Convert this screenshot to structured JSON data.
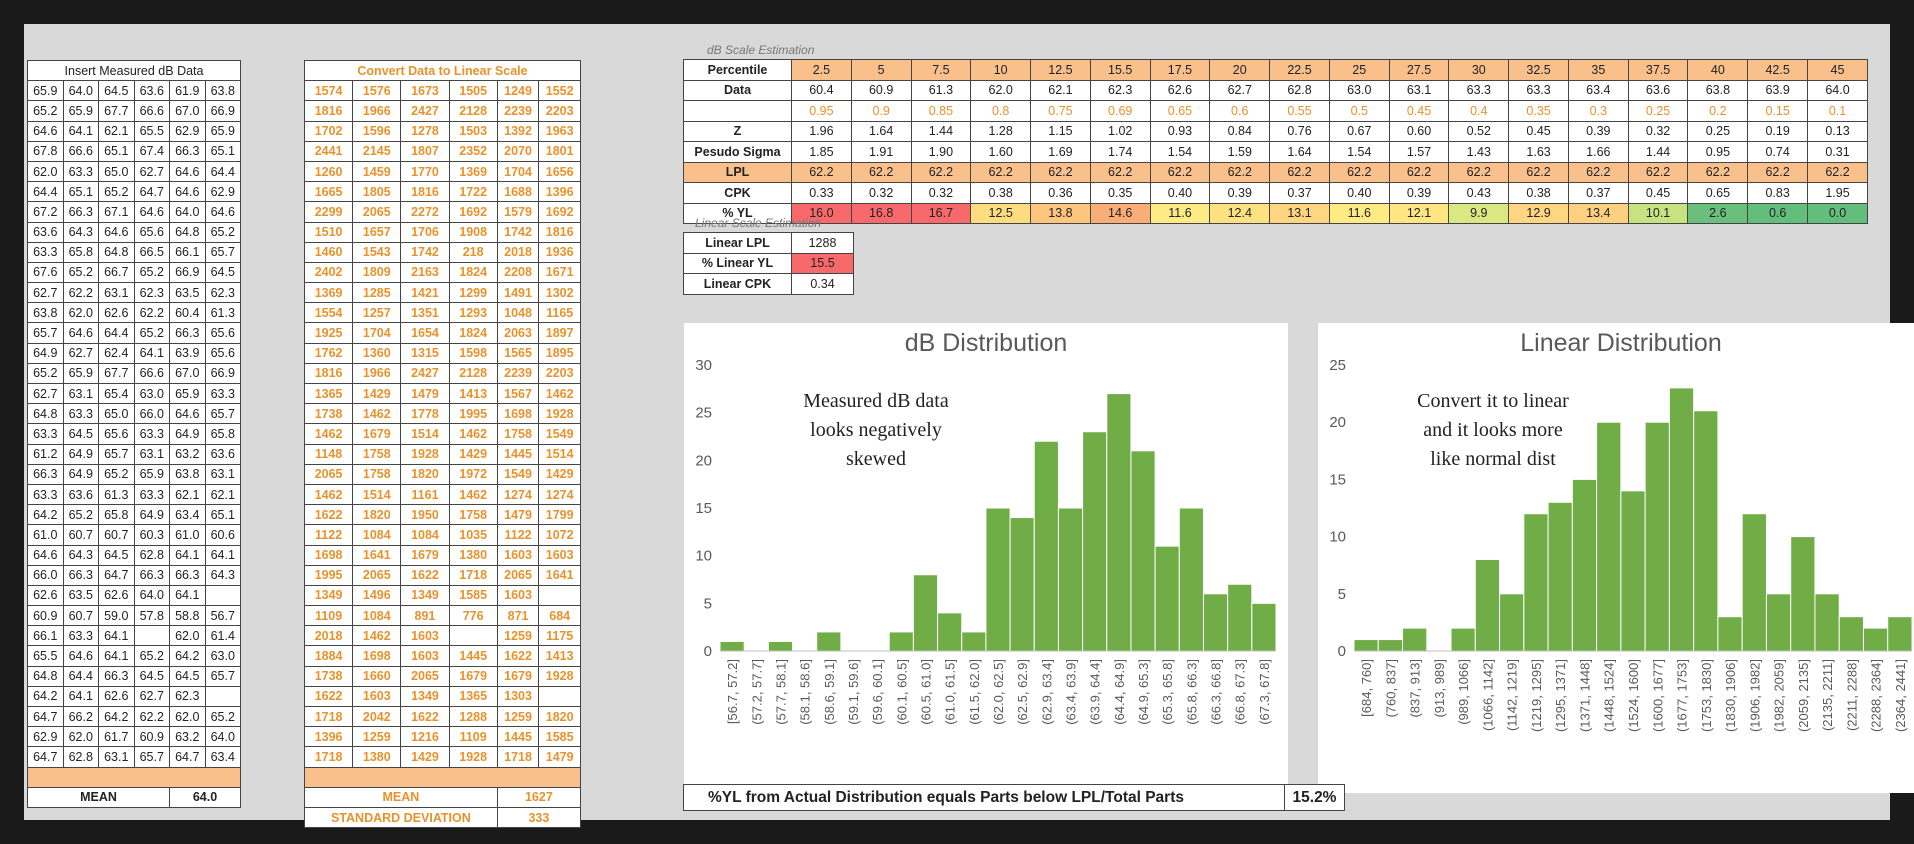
{
  "measured": {
    "header": "Insert Measured dB Data",
    "rows": [
      [
        "65.9",
        "64.0",
        "64.5",
        "63.6",
        "61.9",
        "63.8"
      ],
      [
        "65.2",
        "65.9",
        "67.7",
        "66.6",
        "67.0",
        "66.9"
      ],
      [
        "64.6",
        "64.1",
        "62.1",
        "65.5",
        "62.9",
        "65.9"
      ],
      [
        "67.8",
        "66.6",
        "65.1",
        "67.4",
        "66.3",
        "65.1"
      ],
      [
        "62.0",
        "63.3",
        "65.0",
        "62.7",
        "64.6",
        "64.4"
      ],
      [
        "64.4",
        "65.1",
        "65.2",
        "64.7",
        "64.6",
        "62.9"
      ],
      [
        "67.2",
        "66.3",
        "67.1",
        "64.6",
        "64.0",
        "64.6"
      ],
      [
        "63.6",
        "64.3",
        "64.6",
        "65.6",
        "64.8",
        "65.2"
      ],
      [
        "63.3",
        "65.8",
        "64.8",
        "66.5",
        "66.1",
        "65.7"
      ],
      [
        "67.6",
        "65.2",
        "66.7",
        "65.2",
        "66.9",
        "64.5"
      ],
      [
        "62.7",
        "62.2",
        "63.1",
        "62.3",
        "63.5",
        "62.3"
      ],
      [
        "63.8",
        "62.0",
        "62.6",
        "62.2",
        "60.4",
        "61.3"
      ],
      [
        "65.7",
        "64.6",
        "64.4",
        "65.2",
        "66.3",
        "65.6"
      ],
      [
        "64.9",
        "62.7",
        "62.4",
        "64.1",
        "63.9",
        "65.6"
      ],
      [
        "65.2",
        "65.9",
        "67.7",
        "66.6",
        "67.0",
        "66.9"
      ],
      [
        "62.7",
        "63.1",
        "65.4",
        "63.0",
        "65.9",
        "63.3"
      ],
      [
        "64.8",
        "63.3",
        "65.0",
        "66.0",
        "64.6",
        "65.7"
      ],
      [
        "63.3",
        "64.5",
        "65.6",
        "63.3",
        "64.9",
        "65.8"
      ],
      [
        "61.2",
        "64.9",
        "65.7",
        "63.1",
        "63.2",
        "63.6"
      ],
      [
        "66.3",
        "64.9",
        "65.2",
        "65.9",
        "63.8",
        "63.1"
      ],
      [
        "63.3",
        "63.6",
        "61.3",
        "63.3",
        "62.1",
        "62.1"
      ],
      [
        "64.2",
        "65.2",
        "65.8",
        "64.9",
        "63.4",
        "65.1"
      ],
      [
        "61.0",
        "60.7",
        "60.7",
        "60.3",
        "61.0",
        "60.6"
      ],
      [
        "64.6",
        "64.3",
        "64.5",
        "62.8",
        "64.1",
        "64.1"
      ],
      [
        "66.0",
        "66.3",
        "64.7",
        "66.3",
        "66.3",
        "64.3"
      ],
      [
        "62.6",
        "63.5",
        "62.6",
        "64.0",
        "64.1",
        ""
      ],
      [
        "60.9",
        "60.7",
        "59.0",
        "57.8",
        "58.8",
        "56.7"
      ],
      [
        "66.1",
        "63.3",
        "64.1",
        "",
        "62.0",
        "61.4"
      ],
      [
        "65.5",
        "64.6",
        "64.1",
        "65.2",
        "64.2",
        "63.0"
      ],
      [
        "64.8",
        "64.4",
        "66.3",
        "64.5",
        "64.5",
        "65.7"
      ],
      [
        "64.2",
        "64.1",
        "62.6",
        "62.7",
        "62.3",
        ""
      ],
      [
        "64.7",
        "66.2",
        "64.2",
        "62.2",
        "62.0",
        "65.2"
      ],
      [
        "62.9",
        "62.0",
        "61.7",
        "60.9",
        "63.2",
        "64.0"
      ],
      [
        "64.7",
        "62.8",
        "63.1",
        "65.7",
        "64.7",
        "63.4"
      ]
    ],
    "mean_label": "MEAN",
    "mean_value": "64.0"
  },
  "linear": {
    "header": "Convert Data to Linear Scale",
    "rows": [
      [
        "1574",
        "1576",
        "1673",
        "1505",
        "1249",
        "1552"
      ],
      [
        "1816",
        "1966",
        "2427",
        "2128",
        "2239",
        "2203"
      ],
      [
        "1702",
        "1596",
        "1278",
        "1503",
        "1392",
        "1963"
      ],
      [
        "2441",
        "2145",
        "1807",
        "2352",
        "2070",
        "1801"
      ],
      [
        "1260",
        "1459",
        "1770",
        "1369",
        "1704",
        "1656"
      ],
      [
        "1665",
        "1805",
        "1816",
        "1722",
        "1688",
        "1396"
      ],
      [
        "2299",
        "2065",
        "2272",
        "1692",
        "1579",
        "1692"
      ],
      [
        "1510",
        "1657",
        "1706",
        "1908",
        "1742",
        "1816"
      ],
      [
        "1460",
        "1543",
        "1742",
        "218",
        "2018",
        "1936"
      ],
      [
        "2402",
        "1809",
        "2163",
        "1824",
        "2208",
        "1671"
      ],
      [
        "1369",
        "1285",
        "1421",
        "1299",
        "1491",
        "1302"
      ],
      [
        "1554",
        "1257",
        "1351",
        "1293",
        "1048",
        "1165"
      ],
      [
        "1925",
        "1704",
        "1654",
        "1824",
        "2063",
        "1897"
      ],
      [
        "1762",
        "1360",
        "1315",
        "1598",
        "1565",
        "1895"
      ],
      [
        "1816",
        "1966",
        "2427",
        "2128",
        "2239",
        "2203"
      ],
      [
        "1365",
        "1429",
        "1479",
        "1413",
        "1567",
        "1462"
      ],
      [
        "1738",
        "1462",
        "1778",
        "1995",
        "1698",
        "1928"
      ],
      [
        "1462",
        "1679",
        "1514",
        "1462",
        "1758",
        "1549"
      ],
      [
        "1148",
        "1758",
        "1928",
        "1429",
        "1445",
        "1514"
      ],
      [
        "2065",
        "1758",
        "1820",
        "1972",
        "1549",
        "1429"
      ],
      [
        "1462",
        "1514",
        "1161",
        "1462",
        "1274",
        "1274"
      ],
      [
        "1622",
        "1820",
        "1950",
        "1758",
        "1479",
        "1799"
      ],
      [
        "1122",
        "1084",
        "1084",
        "1035",
        "1122",
        "1072"
      ],
      [
        "1698",
        "1641",
        "1679",
        "1380",
        "1603",
        "1603"
      ],
      [
        "1995",
        "2065",
        "1622",
        "1718",
        "2065",
        "1641"
      ],
      [
        "1349",
        "1496",
        "1349",
        "1585",
        "1603",
        ""
      ],
      [
        "1109",
        "1084",
        "891",
        "776",
        "871",
        "684"
      ],
      [
        "2018",
        "1462",
        "1603",
        "",
        "1259",
        "1175"
      ],
      [
        "1884",
        "1698",
        "1603",
        "1445",
        "1622",
        "1413"
      ],
      [
        "1738",
        "1660",
        "2065",
        "1679",
        "1679",
        "1928"
      ],
      [
        "1622",
        "1603",
        "1349",
        "1365",
        "1303",
        ""
      ],
      [
        "1718",
        "2042",
        "1622",
        "1288",
        "1259",
        "1820"
      ],
      [
        "1396",
        "1259",
        "1216",
        "1109",
        "1445",
        "1585"
      ],
      [
        "1718",
        "1380",
        "1429",
        "1928",
        "1718",
        "1479"
      ]
    ],
    "mean_label": "MEAN",
    "mean_value": "1627",
    "sd_label": "STANDARD DEVIATION",
    "sd_value": "333"
  },
  "db_scale": {
    "title": "dB Scale Estimation",
    "percentile_label": "Percentile",
    "percentiles": [
      "2.5",
      "5",
      "7.5",
      "10",
      "12.5",
      "15.5",
      "17.5",
      "20",
      "22.5",
      "25",
      "27.5",
      "30",
      "32.5",
      "35",
      "37.5",
      "40",
      "42.5",
      "45"
    ],
    "data_label": "Data",
    "data": [
      "60.4",
      "60.9",
      "61.3",
      "62.0",
      "62.1",
      "62.3",
      "62.6",
      "62.7",
      "62.8",
      "63.0",
      "63.1",
      "63.3",
      "63.3",
      "63.4",
      "63.6",
      "63.8",
      "63.9",
      "64.0"
    ],
    "sigma_row": [
      "0.95",
      "0.9",
      "0.85",
      "0.8",
      "0.75",
      "0.69",
      "0.65",
      "0.6",
      "0.55",
      "0.5",
      "0.45",
      "0.4",
      "0.35",
      "0.3",
      "0.25",
      "0.2",
      "0.15",
      "0.1"
    ],
    "z_label": "Z",
    "z": [
      "1.96",
      "1.64",
      "1.44",
      "1.28",
      "1.15",
      "1.02",
      "0.93",
      "0.84",
      "0.76",
      "0.67",
      "0.60",
      "0.52",
      "0.45",
      "0.39",
      "0.32",
      "0.25",
      "0.19",
      "0.13"
    ],
    "pseudo_label": "Pesudo Sigma",
    "pseudo": [
      "1.85",
      "1.91",
      "1.90",
      "1.60",
      "1.69",
      "1.74",
      "1.54",
      "1.59",
      "1.64",
      "1.54",
      "1.57",
      "1.43",
      "1.63",
      "1.66",
      "1.44",
      "0.95",
      "0.74",
      "0.31"
    ],
    "lpl_label": "LPL",
    "lpl": [
      "62.2",
      "62.2",
      "62.2",
      "62.2",
      "62.2",
      "62.2",
      "62.2",
      "62.2",
      "62.2",
      "62.2",
      "62.2",
      "62.2",
      "62.2",
      "62.2",
      "62.2",
      "62.2",
      "62.2",
      "62.2"
    ],
    "cpk_label": "CPK",
    "cpk": [
      "0.33",
      "0.32",
      "0.32",
      "0.38",
      "0.36",
      "0.35",
      "0.40",
      "0.39",
      "0.37",
      "0.40",
      "0.39",
      "0.43",
      "0.38",
      "0.37",
      "0.45",
      "0.65",
      "0.83",
      "1.95"
    ],
    "yl_label": "% YL",
    "yl": [
      "16.0",
      "16.8",
      "16.7",
      "12.5",
      "13.8",
      "14.6",
      "11.6",
      "12.4",
      "13.1",
      "11.6",
      "12.1",
      "9.9",
      "12.9",
      "13.4",
      "10.1",
      "2.6",
      "0.6",
      "0.0"
    ],
    "yl_colors": [
      "#f8696b",
      "#f8696b",
      "#f8696b",
      "#fedd81",
      "#fdc57d",
      "#fbad78",
      "#ffeb84",
      "#fee282",
      "#fed580",
      "#ffeb84",
      "#ffe683",
      "#d9e883",
      "#fed580",
      "#fdd17f",
      "#c7e381",
      "#6bbe7b",
      "#63be7b",
      "#63be7b"
    ]
  },
  "linear_scale": {
    "title": "Linear Scale Estimation",
    "rows": [
      {
        "label": "Linear LPL",
        "value": "1288"
      },
      {
        "label": "% Linear YL",
        "value": "15.5"
      },
      {
        "label": "Linear CPK",
        "value": "0.34"
      }
    ]
  },
  "chart_data": [
    {
      "type": "bar",
      "title": "dB Distribution",
      "annotation": [
        "Measured dB data",
        "looks negatively",
        "skewed"
      ],
      "categories": [
        "[56.7, 57.2]",
        "(57.2, 57.7]",
        "(57.7, 58.1]",
        "(58.1, 58.6]",
        "(58.6, 59.1]",
        "(59.1, 59.6]",
        "(59.6, 60.1]",
        "(60.1, 60.5]",
        "(60.5, 61.0]",
        "(61.0, 61.5]",
        "(61.5, 62.0]",
        "(62.0, 62.5]",
        "(62.5, 62.9]",
        "(62.9, 63.4]",
        "(63.4, 63.9]",
        "(63.9, 64.4]",
        "(64.4, 64.9]",
        "(64.9, 65.3]",
        "(65.3, 65.8]",
        "(65.8, 66.3]",
        "(66.3, 66.8]",
        "(66.8, 67.3]",
        "(67.3, 67.8]"
      ],
      "values": [
        1,
        0,
        1,
        0,
        2,
        0,
        0,
        2,
        8,
        4,
        2,
        15,
        14,
        22,
        15,
        23,
        27,
        21,
        11,
        15,
        6,
        7,
        5
      ],
      "yticks": [
        "0",
        "5",
        "10",
        "15",
        "20",
        "25",
        "30"
      ],
      "ylim": [
        0,
        30
      ],
      "bar_color": "#70ad47"
    },
    {
      "type": "bar",
      "title": "Linear Distribution",
      "annotation": [
        "Convert it to linear",
        "and it looks more",
        "like normal dist"
      ],
      "categories": [
        "[684, 760]",
        "(760, 837]",
        "(837, 913]",
        "(913, 989]",
        "(989, 1066]",
        "(1066, 1142]",
        "(1142, 1219]",
        "(1219, 1295]",
        "(1295, 1371]",
        "(1371, 1448]",
        "(1448, 1524]",
        "(1524, 1600]",
        "(1600, 1677]",
        "(1677, 1753]",
        "(1753, 1830]",
        "(1830, 1906]",
        "(1906, 1982]",
        "(1982, 2059]",
        "(2059, 2135]",
        "(2135, 2211]",
        "(2211, 2288]",
        "(2288, 2364]",
        "(2364, 2441]"
      ],
      "values": [
        1,
        1,
        2,
        0,
        2,
        8,
        5,
        12,
        13,
        15,
        20,
        14,
        20,
        23,
        21,
        3,
        12,
        5,
        10,
        5,
        3,
        2,
        3
      ],
      "yticks": [
        "0",
        "5",
        "10",
        "15",
        "20",
        "25"
      ],
      "ylim": [
        0,
        25
      ],
      "bar_color": "#70ad47"
    }
  ],
  "footer": {
    "label": "%YL from Actual Distribution equals Parts below LPL/Total Parts",
    "value": "15.2%"
  }
}
